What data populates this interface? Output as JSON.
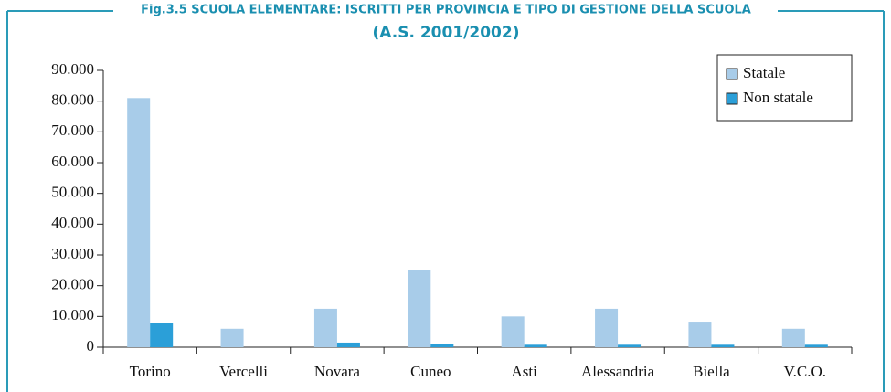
{
  "chart_data": {
    "type": "bar",
    "title": "Fig.3.5 SCUOLA ELEMENTARE: ISCRITTI PER PROVINCIA E TIPO DI GESTIONE DELLA SCUOLA",
    "subtitle": "(A.S. 2001/2002)",
    "categories": [
      "Torino",
      "Vercelli",
      "Novara",
      "Cuneo",
      "Asti",
      "Alessandria",
      "Biella",
      "V.C.O."
    ],
    "series": [
      {
        "name": "Statale",
        "color": "#a8cce9",
        "values": [
          81000,
          6000,
          12500,
          25000,
          10000,
          12500,
          8300,
          6000
        ]
      },
      {
        "name": "Non statale",
        "color": "#2b9fd8",
        "values": [
          7800,
          0,
          1500,
          900,
          800,
          800,
          800,
          800
        ]
      }
    ],
    "ylim": [
      0,
      90000
    ],
    "yticks": [
      0,
      {
        "value": 10000,
        "label": "10.000"
      },
      {
        "value": 20000,
        "label": "20.000"
      },
      {
        "value": 30000,
        "label": "30.000"
      },
      {
        "value": 40000,
        "label": "40.000"
      },
      {
        "value": 50000,
        "label": "50.000"
      },
      {
        "value": 60000,
        "label": "60.000"
      },
      {
        "value": 70000,
        "label": "70.000"
      },
      {
        "value": 80000,
        "label": "80.000"
      },
      {
        "value": 90000,
        "label": "90.000"
      }
    ],
    "grid": false,
    "legend": "upper right"
  }
}
